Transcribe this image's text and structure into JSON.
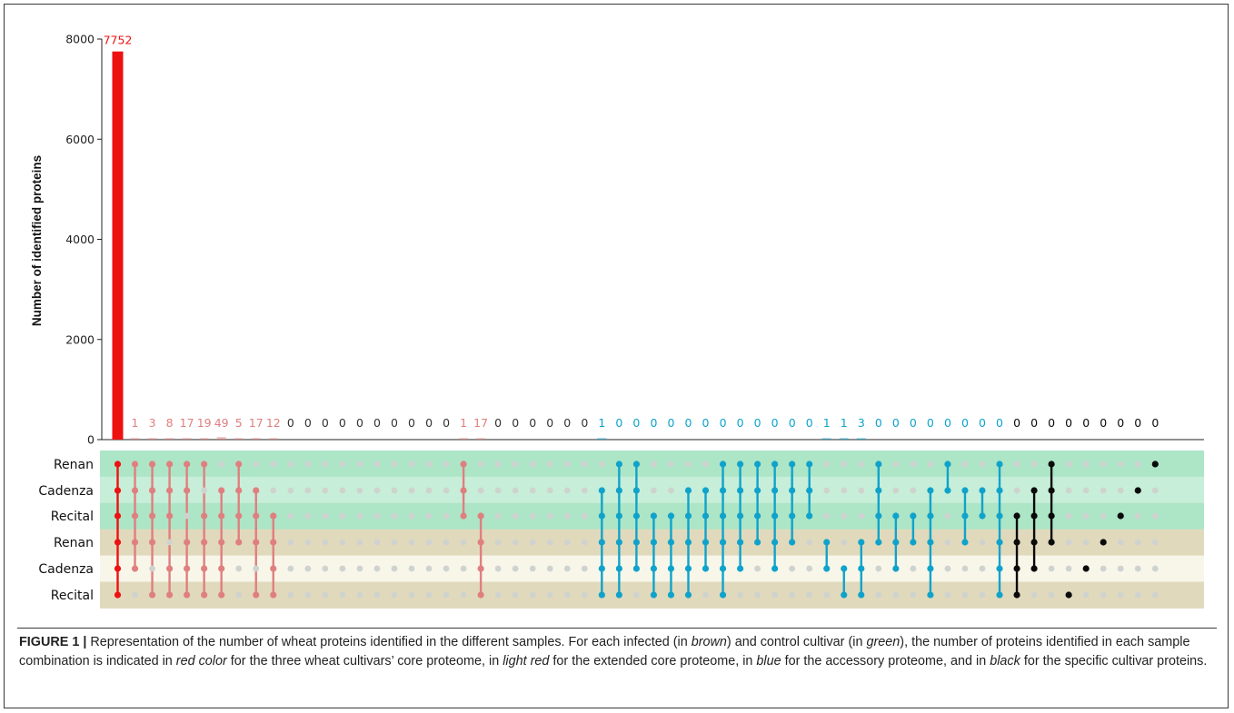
{
  "chart_data": {
    "type": "bar",
    "ylabel": "Number of identified proteins",
    "ylim": [
      0,
      8000
    ],
    "yticks": [
      0,
      2000,
      4000,
      6000,
      8000
    ],
    "sets": [
      "Renan",
      "Cadenza",
      "Recital",
      "Renan",
      "Cadenza",
      "Recital"
    ],
    "set_groups": {
      "control_green": [
        0,
        1,
        2
      ],
      "infected_brown": [
        3,
        4,
        5
      ]
    },
    "colors": {
      "core": "#ee1111",
      "extended_core": "#e07f7f",
      "accessory": "#0fa3cb",
      "specific": "#0a0a0a",
      "empty_count": "#333333",
      "inactive_dot": "#cfd3cf",
      "green_dark_band": "#ade5c7",
      "green_light_band": "#c7eed8",
      "brown_band": "#e1d9bc",
      "cream_band": "#f7f6e9"
    },
    "intersections": [
      {
        "value": 7752,
        "group": "core",
        "members": [
          0,
          1,
          2,
          3,
          4,
          5
        ]
      },
      {
        "value": 1,
        "group": "extended_core",
        "members": [
          0,
          1,
          2,
          3,
          4
        ]
      },
      {
        "value": 3,
        "group": "extended_core",
        "members": [
          0,
          1,
          2,
          3,
          5
        ]
      },
      {
        "value": 8,
        "group": "extended_core",
        "members": [
          0,
          1,
          2,
          4,
          5
        ]
      },
      {
        "value": 17,
        "group": "extended_core",
        "members": [
          0,
          1,
          3,
          4,
          5
        ]
      },
      {
        "value": 19,
        "group": "extended_core",
        "members": [
          0,
          2,
          3,
          4,
          5
        ]
      },
      {
        "value": 49,
        "group": "extended_core",
        "members": [
          1,
          2,
          3,
          4,
          5
        ]
      },
      {
        "value": 5,
        "group": "extended_core",
        "members": [
          0,
          1,
          2,
          3
        ]
      },
      {
        "value": 17,
        "group": "extended_core",
        "members": [
          1,
          2,
          3,
          5
        ]
      },
      {
        "value": 12,
        "group": "extended_core",
        "members": [
          2,
          3,
          4,
          5
        ]
      },
      {
        "value": 0,
        "group": "empty",
        "members": [
          1,
          2,
          3,
          4,
          5
        ]
      },
      {
        "value": 0,
        "group": "empty",
        "members": [
          1,
          2,
          3,
          4,
          5
        ]
      },
      {
        "value": 0,
        "group": "empty",
        "members": [
          0,
          1,
          2,
          3,
          4,
          5
        ]
      },
      {
        "value": 0,
        "group": "empty",
        "members": [
          0,
          1,
          2,
          3,
          4,
          5
        ]
      },
      {
        "value": 0,
        "group": "empty",
        "members": [
          0,
          1,
          2,
          3,
          4,
          5
        ]
      },
      {
        "value": 0,
        "group": "empty",
        "members": [
          0,
          1,
          2,
          3,
          4,
          5
        ]
      },
      {
        "value": 0,
        "group": "empty",
        "members": [
          0,
          1,
          2,
          3,
          4,
          5
        ]
      },
      {
        "value": 0,
        "group": "empty",
        "members": [
          0,
          1,
          2,
          3,
          4,
          5
        ]
      },
      {
        "value": 0,
        "group": "empty",
        "members": [
          0,
          1,
          2,
          3
        ]
      },
      {
        "value": 0,
        "group": "empty",
        "members": [
          0,
          1,
          2,
          3
        ]
      },
      {
        "value": 1,
        "group": "extended_core",
        "members": [
          0,
          1,
          2
        ]
      },
      {
        "value": 17,
        "group": "extended_core",
        "members": [
          2,
          3,
          4,
          5
        ]
      },
      {
        "value": 0,
        "group": "empty",
        "members": [
          2,
          3,
          4
        ]
      },
      {
        "value": 0,
        "group": "empty",
        "members": [
          1,
          2,
          3,
          4,
          5
        ]
      },
      {
        "value": 0,
        "group": "empty",
        "members": [
          1,
          2,
          3,
          4,
          5
        ]
      },
      {
        "value": 0,
        "group": "empty",
        "members": [
          0,
          1,
          2,
          3,
          4,
          5
        ]
      },
      {
        "value": 0,
        "group": "empty",
        "members": [
          0,
          1,
          2,
          3,
          4,
          5
        ]
      },
      {
        "value": 0,
        "group": "empty",
        "members": [
          0,
          1,
          2,
          3,
          4,
          5
        ]
      },
      {
        "value": 1,
        "group": "accessory",
        "members": [
          1,
          2,
          3,
          4,
          5
        ]
      },
      {
        "value": 0,
        "group": "accessory",
        "members": [
          0,
          1,
          2,
          3,
          4,
          5
        ]
      },
      {
        "value": 0,
        "group": "accessory",
        "members": [
          0,
          1,
          2,
          3,
          4
        ]
      },
      {
        "value": 0,
        "group": "accessory",
        "members": [
          2,
          3,
          4,
          5
        ]
      },
      {
        "value": 0,
        "group": "accessory",
        "members": [
          2,
          3,
          4,
          5
        ]
      },
      {
        "value": 0,
        "group": "accessory",
        "members": [
          1,
          2,
          3,
          4,
          5
        ]
      },
      {
        "value": 0,
        "group": "accessory",
        "members": [
          1,
          2,
          3,
          4
        ]
      },
      {
        "value": 0,
        "group": "accessory",
        "members": [
          0,
          1,
          2,
          3,
          4,
          5
        ]
      },
      {
        "value": 0,
        "group": "accessory",
        "members": [
          0,
          1,
          2,
          3,
          4
        ]
      },
      {
        "value": 0,
        "group": "accessory",
        "members": [
          0,
          1,
          2,
          3
        ]
      },
      {
        "value": 0,
        "group": "accessory",
        "members": [
          0,
          1,
          2,
          3,
          4
        ]
      },
      {
        "value": 0,
        "group": "accessory",
        "members": [
          0,
          1,
          2,
          3
        ]
      },
      {
        "value": 0,
        "group": "accessory",
        "members": [
          0,
          1,
          2
        ]
      },
      {
        "value": 1,
        "group": "accessory",
        "members": [
          3,
          4
        ]
      },
      {
        "value": 1,
        "group": "accessory",
        "members": [
          4,
          5
        ]
      },
      {
        "value": 3,
        "group": "accessory",
        "members": [
          3,
          4,
          5
        ]
      },
      {
        "value": 0,
        "group": "accessory",
        "members": [
          0,
          1,
          2,
          3
        ]
      },
      {
        "value": 0,
        "group": "accessory",
        "members": [
          2,
          3,
          4
        ]
      },
      {
        "value": 0,
        "group": "accessory",
        "members": [
          2,
          3
        ]
      },
      {
        "value": 0,
        "group": "accessory",
        "members": [
          1,
          2,
          3,
          4,
          5
        ]
      },
      {
        "value": 0,
        "group": "accessory",
        "members": [
          0,
          1
        ]
      },
      {
        "value": 0,
        "group": "accessory",
        "members": [
          1,
          2,
          3
        ]
      },
      {
        "value": 0,
        "group": "accessory",
        "members": [
          1,
          2
        ]
      },
      {
        "value": 0,
        "group": "accessory",
        "members": [
          0,
          1,
          2,
          3,
          4,
          5
        ]
      },
      {
        "value": 0,
        "group": "specific",
        "members": [
          2,
          3,
          4,
          5
        ]
      },
      {
        "value": 0,
        "group": "specific",
        "members": [
          1,
          2,
          3,
          4
        ]
      },
      {
        "value": 0,
        "group": "specific",
        "members": [
          0,
          1,
          2,
          3
        ]
      },
      {
        "value": 0,
        "group": "specific",
        "members": [
          5
        ]
      },
      {
        "value": 0,
        "group": "specific",
        "members": [
          4
        ]
      },
      {
        "value": 0,
        "group": "specific",
        "members": [
          3
        ]
      },
      {
        "value": 0,
        "group": "specific",
        "members": [
          2
        ]
      },
      {
        "value": 0,
        "group": "specific",
        "members": [
          1
        ]
      },
      {
        "value": 0,
        "group": "specific",
        "members": [
          0
        ]
      }
    ]
  },
  "caption": {
    "label": "FIGURE 1 |",
    "parts": [
      {
        "text": " Representation of the number of wheat proteins identified in the different samples. For each infected (in ",
        "italic": false
      },
      {
        "text": "brown",
        "italic": true
      },
      {
        "text": ") and control cultivar (in ",
        "italic": false
      },
      {
        "text": "green",
        "italic": true
      },
      {
        "text": "), the number of proteins identified in each sample combination is indicated in ",
        "italic": false
      },
      {
        "text": "red color",
        "italic": true
      },
      {
        "text": " for the three wheat cultivars’ core proteome, in ",
        "italic": false
      },
      {
        "text": "light red",
        "italic": true
      },
      {
        "text": " for the extended core proteome, in ",
        "italic": false
      },
      {
        "text": "blue",
        "italic": true
      },
      {
        "text": " for the accessory proteome, and in ",
        "italic": false
      },
      {
        "text": "black",
        "italic": true
      },
      {
        "text": " for the specific cultivar proteins.",
        "italic": false
      }
    ]
  }
}
